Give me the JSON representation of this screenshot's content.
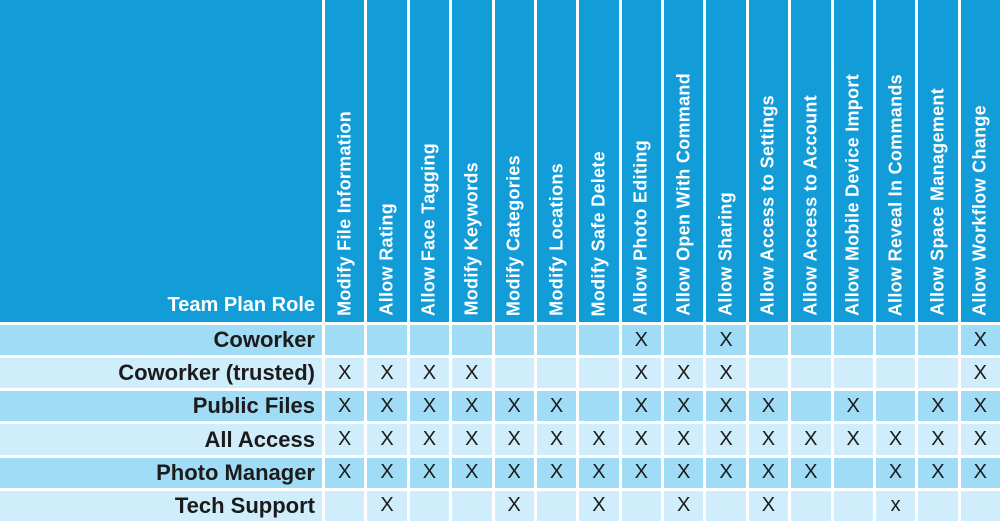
{
  "colors": {
    "header_blue": "#129DD9",
    "stripe_dark": "#A0DCF5",
    "stripe_light": "#CFEDFB",
    "line_white": "#FFFFFF",
    "text_dark": "#1B1B1B"
  },
  "chart_data": {
    "type": "table",
    "title": "Team Plan Role permissions matrix",
    "corner_label": "Team Plan Role",
    "mark_symbol": "X",
    "columns": [
      "Modify File Information",
      "Allow Rating",
      "Allow Face Tagging",
      "Modify Keywords",
      "Modify Categories",
      "Modify Locations",
      "Modify Safe Delete",
      "Allow Photo Editing",
      "Allow Open With Command",
      "Allow Sharing",
      "Allow Access to Settings",
      "Allow Access to Account",
      "Allow Mobile Device Import",
      "Allow Reveal In Commands",
      "Allow Space Management",
      "Allow Workflow Change"
    ],
    "rows": [
      {
        "label": "Coworker",
        "marks": [
          "",
          "",
          "",
          "",
          "",
          "",
          "",
          "X",
          "",
          "X",
          "",
          "",
          "",
          "",
          "",
          "X"
        ]
      },
      {
        "label": "Coworker (trusted)",
        "marks": [
          "X",
          "X",
          "X",
          "X",
          "",
          "",
          "",
          "X",
          "X",
          "X",
          "",
          "",
          "",
          "",
          "",
          "X"
        ]
      },
      {
        "label": "Public Files",
        "marks": [
          "X",
          "X",
          "X",
          "X",
          "X",
          "X",
          "",
          "X",
          "X",
          "X",
          "X",
          "",
          "X",
          "",
          "X",
          "X"
        ]
      },
      {
        "label": "All Access",
        "marks": [
          "X",
          "X",
          "X",
          "X",
          "X",
          "X",
          "X",
          "X",
          "X",
          "X",
          "X",
          "X",
          "X",
          "X",
          "X",
          "X"
        ]
      },
      {
        "label": "Photo Manager",
        "marks": [
          "X",
          "X",
          "X",
          "X",
          "X",
          "X",
          "X",
          "X",
          "X",
          "X",
          "X",
          "X",
          "",
          "X",
          "X",
          "X"
        ]
      },
      {
        "label": "Tech Support",
        "marks": [
          "",
          "X",
          "",
          "",
          "X",
          "",
          "X",
          "",
          "X",
          "",
          "X",
          "",
          "",
          "x",
          "",
          ""
        ]
      }
    ]
  }
}
